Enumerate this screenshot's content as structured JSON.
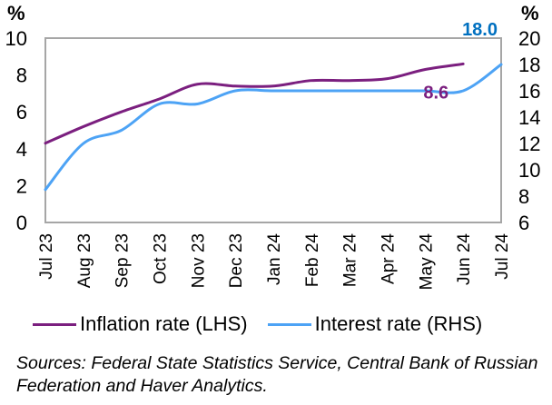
{
  "chart_data": {
    "type": "line",
    "title": "",
    "x": [
      "Jul 23",
      "Aug 23",
      "Sep 23",
      "Oct 23",
      "Nov 23",
      "Dec 23",
      "Jan 24",
      "Feb 24",
      "Mar 24",
      "Apr 24",
      "May 24",
      "Jun 24",
      "Jul 24"
    ],
    "series": [
      {
        "name": "Inflation rate (LHS)",
        "axis": "left",
        "color": "#7b1f7f",
        "values": [
          4.3,
          5.2,
          6.0,
          6.7,
          7.5,
          7.4,
          7.4,
          7.7,
          7.7,
          7.8,
          8.3,
          8.6,
          null
        ],
        "end_label": "8.6",
        "end_label_color": "#7b1f7f"
      },
      {
        "name": "Interest rate (RHS)",
        "axis": "right",
        "color": "#4da3f5",
        "values": [
          8.5,
          12.0,
          13.0,
          15.0,
          15.0,
          16.0,
          16.0,
          16.0,
          16.0,
          16.0,
          16.0,
          16.0,
          18.0
        ],
        "end_label": "18.0",
        "end_label_color": "#0070c0"
      }
    ],
    "left_axis": {
      "label": "%",
      "ylim": [
        0,
        10
      ],
      "ticks": [
        "0",
        "2",
        "4",
        "6",
        "8",
        "10"
      ]
    },
    "right_axis": {
      "label": "%",
      "ylim": [
        6,
        20
      ],
      "ticks": [
        "6",
        "8",
        "10",
        "12",
        "14",
        "16",
        "18",
        "20"
      ]
    },
    "grid": false,
    "legend_position": "bottom"
  },
  "legend": {
    "items": [
      {
        "label": "Inflation rate (LHS)",
        "color": "#7b1f7f"
      },
      {
        "label": "Interest rate (RHS)",
        "color": "#4da3f5"
      }
    ]
  },
  "source_note": "Sources: Federal State Statistics Service, Central Bank of Russian Federation and Haver Analytics."
}
